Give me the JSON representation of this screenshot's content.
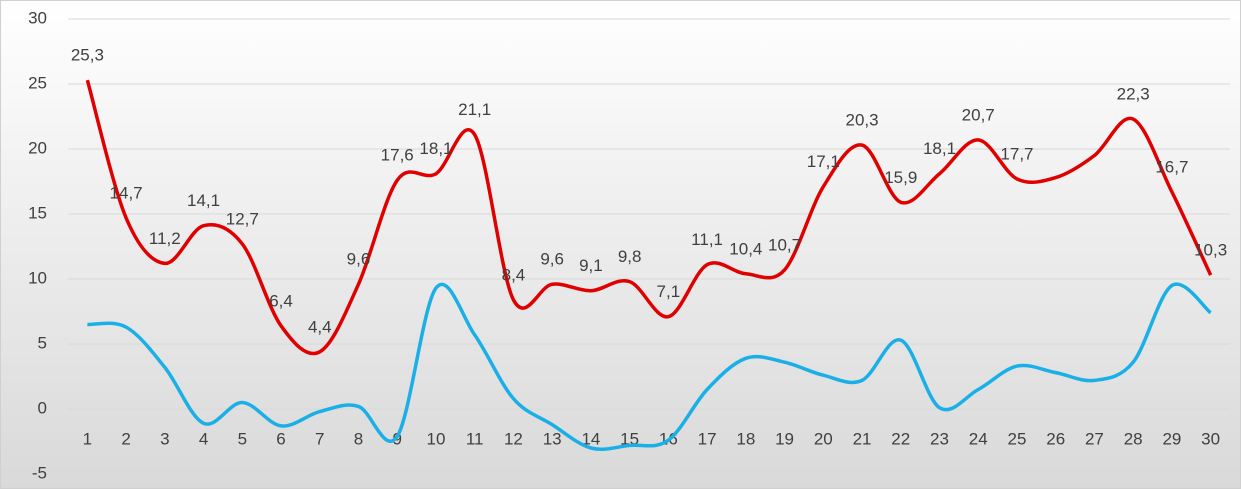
{
  "chart_data": {
    "type": "line",
    "categories": [
      "1",
      "2",
      "3",
      "4",
      "5",
      "6",
      "7",
      "8",
      "9",
      "10",
      "11",
      "12",
      "13",
      "14",
      "15",
      "16",
      "17",
      "18",
      "19",
      "20",
      "21",
      "22",
      "23",
      "24",
      "25",
      "26",
      "27",
      "28",
      "29",
      "30"
    ],
    "series": [
      {
        "color": "#e00000",
        "values": [
          25.3,
          14.7,
          11.2,
          14.1,
          12.7,
          6.4,
          4.4,
          9.6,
          17.6,
          18.1,
          21.1,
          8.4,
          9.6,
          9.1,
          9.8,
          7.1,
          11.1,
          10.4,
          10.7,
          17.1,
          20.3,
          15.9,
          18.1,
          20.7,
          17.7,
          17.8,
          19.5,
          22.3,
          16.7,
          10.3
        ],
        "value_labels": [
          "25,3",
          "14,7",
          "11,2",
          "14,1",
          "12,7",
          "6,4",
          "4,4",
          "9,6",
          "17,6",
          "18,1",
          "21,1",
          "8,4",
          "9,6",
          "9,1",
          "9,8",
          "7,1",
          "11,1",
          "10,4",
          "10,7",
          "17,1",
          "20,3",
          "15,9",
          "18,1",
          "20,7",
          "17,7",
          null,
          null,
          "22,3",
          "16,7",
          "10,3"
        ]
      },
      {
        "color": "#1aafe6",
        "values": [
          6.5,
          6.3,
          3.2,
          -1.1,
          0.5,
          -1.3,
          -0.2,
          0.2,
          -2.1,
          9.3,
          5.7,
          0.8,
          -1.2,
          -3.0,
          -2.8,
          -2.4,
          1.5,
          3.9,
          3.6,
          2.6,
          2.2,
          5.3,
          0.1,
          1.5,
          3.3,
          2.8,
          2.2,
          3.6,
          9.5,
          7.4
        ]
      }
    ],
    "ylim": [
      -5,
      30
    ],
    "yticks": [
      -5,
      0,
      5,
      10,
      15,
      20,
      25,
      30
    ],
    "grid": true
  }
}
